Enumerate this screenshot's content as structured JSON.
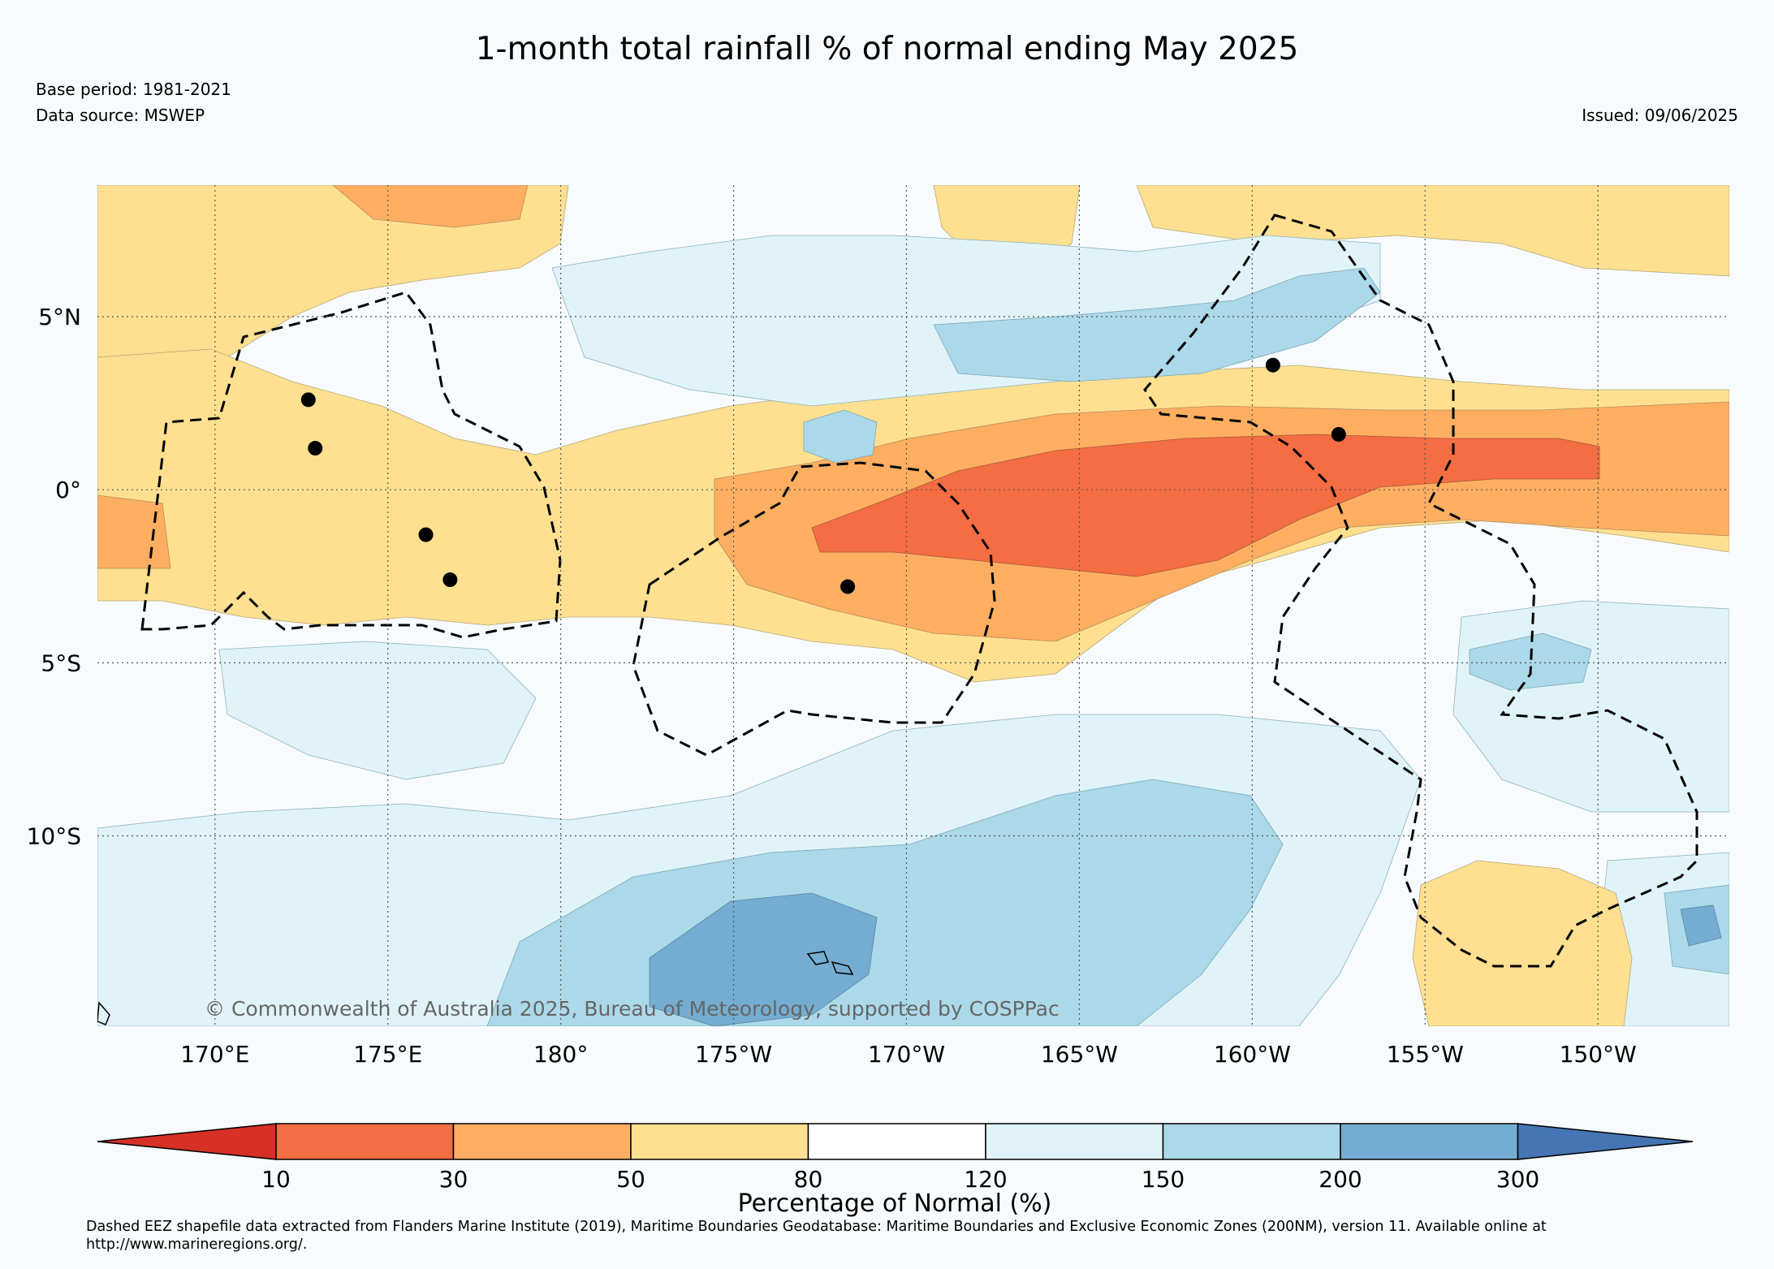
{
  "title": "1-month total rainfall % of normal ending May 2025",
  "base_period": "Base period: 1981-2021",
  "data_source": "Data source: MSWEP",
  "issued": "Issued: 09/06/2025",
  "copyright": "© Commonwealth of Australia 2025, Bureau of Meteorology, supported by COSPPac",
  "map": {
    "lat_range": [
      -15.5,
      8.8
    ],
    "lon_range": [
      166.6,
      213.8
    ],
    "lat_ticks": [
      {
        "value": 5,
        "label": "5°N"
      },
      {
        "value": 0,
        "label": "0°"
      },
      {
        "value": -5,
        "label": "5°S"
      },
      {
        "value": -10,
        "label": "10°S"
      }
    ],
    "lon_ticks": [
      {
        "value": 170,
        "label": "170°E"
      },
      {
        "value": 175,
        "label": "175°E"
      },
      {
        "value": 180,
        "label": "180°"
      },
      {
        "value": 185,
        "label": "175°W"
      },
      {
        "value": 190,
        "label": "170°W"
      },
      {
        "value": 195,
        "label": "165°W"
      },
      {
        "value": 200,
        "label": "160°W"
      },
      {
        "value": 205,
        "label": "155°W"
      },
      {
        "value": 210,
        "label": "150°W"
      }
    ],
    "stations": [
      {
        "lon": 172.7,
        "lat": 2.6
      },
      {
        "lon": 172.9,
        "lat": 1.2
      },
      {
        "lon": 176.1,
        "lat": -1.3
      },
      {
        "lon": 176.8,
        "lat": -2.6
      },
      {
        "lon": 188.3,
        "lat": -2.8
      },
      {
        "lon": 200.6,
        "lat": 3.6
      },
      {
        "lon": 202.5,
        "lat": 1.6
      }
    ],
    "colors": {
      "background": "#f7fbfd",
      "band_10_30": "#f46d43",
      "band_30_50": "#fdae61",
      "band_50_80": "#fee090",
      "band_80_120": "#f7fbfd",
      "band_120_150": "#e0f3f8",
      "band_150_200": "#abd9e9",
      "band_200_300": "#74add1",
      "above_300": "#4575b4"
    }
  },
  "colorbar": {
    "title": "Percentage of Normal (%)",
    "labels": [
      "10",
      "30",
      "50",
      "80",
      "120",
      "150",
      "200",
      "300"
    ],
    "colors": [
      "#d73027",
      "#f46d43",
      "#fdae61",
      "#fee090",
      "#ffffff",
      "#e0f3f8",
      "#abd9e9",
      "#74add1",
      "#4575b4"
    ]
  },
  "footnote": "Dashed EEZ shapefile data extracted from Flanders Marine Institute (2019), Maritime Boundaries Geodatabase: Maritime Boundaries and Exclusive Economic Zones (200NM), version 11. Available online at http://www.marineregions.org/."
}
